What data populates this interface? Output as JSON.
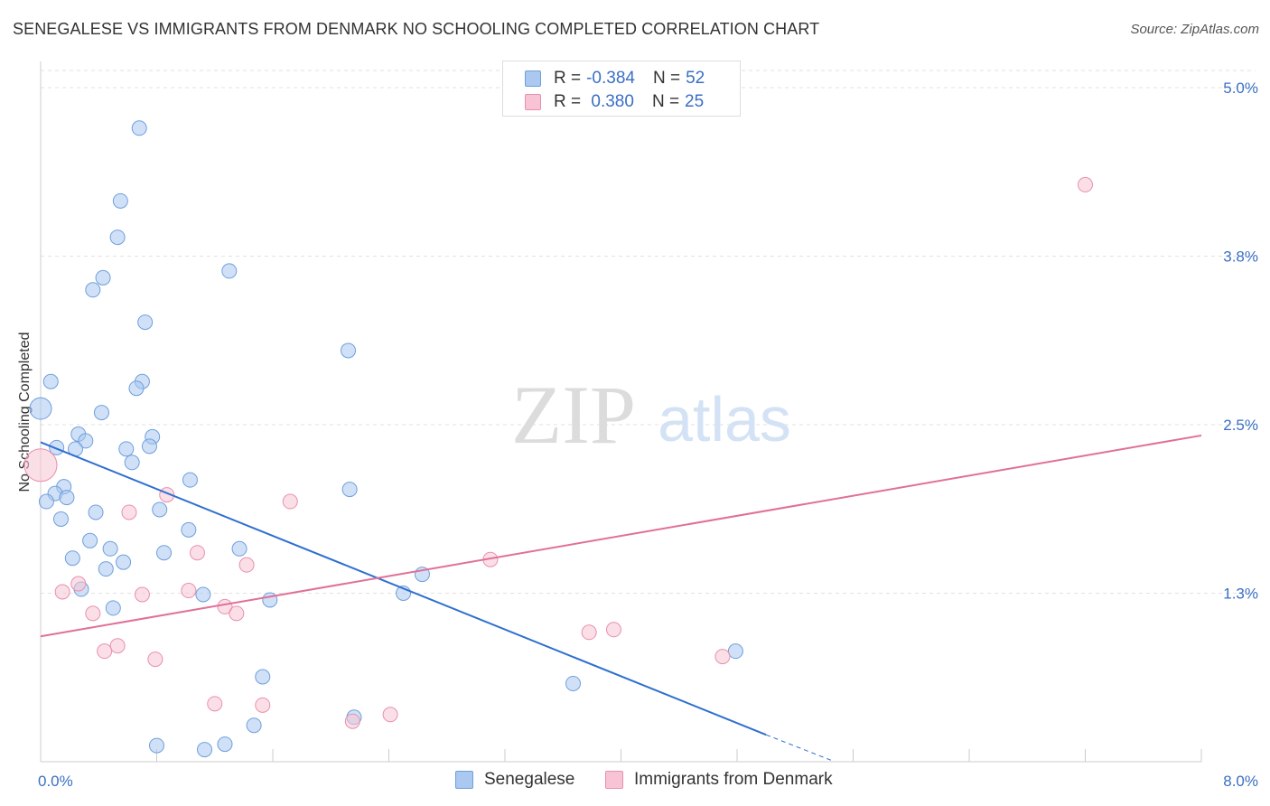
{
  "title": "SENEGALESE VS IMMIGRANTS FROM DENMARK NO SCHOOLING COMPLETED CORRELATION CHART",
  "source": "Source: ZipAtlas.com",
  "watermark": {
    "zip": "ZIP",
    "atlas": "atlas"
  },
  "legend": {
    "rows": [
      {
        "r_label": "R = ",
        "r_value": "-0.384",
        "n_label": "N = ",
        "n_value": "52",
        "color": "#aac8f0",
        "border": "#6e9fdc"
      },
      {
        "r_label": "R = ",
        "r_value": " 0.380",
        "n_label": "N = ",
        "n_value": "25",
        "color": "#f8c4d4",
        "border": "#e98fae"
      }
    ]
  },
  "bottom_legend": [
    {
      "label": "Senegalese",
      "color": "#aac8f0",
      "border": "#6e9fdc"
    },
    {
      "label": "Immigrants from Denmark",
      "color": "#f8c4d4",
      "border": "#e98fae"
    }
  ],
  "chart_data": {
    "type": "scatter",
    "title": "SENEGALESE VS IMMIGRANTS FROM DENMARK NO SCHOOLING COMPLETED CORRELATION CHART",
    "xlabel": "",
    "ylabel": "No Schooling Completed",
    "xlim": [
      0,
      8.0
    ],
    "ylim": [
      0,
      5.0
    ],
    "x_tick_labels": [
      {
        "value": 0,
        "label": "0.0%"
      },
      {
        "value": 8.0,
        "label": "8.0%"
      }
    ],
    "y_tick_labels": [
      {
        "value": 1.25,
        "label": "1.3%"
      },
      {
        "value": 2.5,
        "label": "2.5%"
      },
      {
        "value": 3.75,
        "label": "3.8%"
      },
      {
        "value": 5.0,
        "label": "5.0%"
      }
    ],
    "grid": true,
    "series": [
      {
        "name": "Senegalese",
        "color": "#6e9fdc",
        "fill": "#aac8f0",
        "trend": {
          "x": [
            0.0,
            5.0
          ],
          "y": [
            2.37,
            0.2
          ]
        },
        "trend_dashed": {
          "x": [
            5.0,
            5.45
          ],
          "y": [
            0.2,
            0.01
          ]
        },
        "points": [
          [
            0.68,
            4.7
          ],
          [
            0.55,
            4.16
          ],
          [
            0.53,
            3.89
          ],
          [
            0.43,
            3.59
          ],
          [
            0.36,
            3.5
          ],
          [
            0.72,
            3.26
          ],
          [
            1.3,
            3.64
          ],
          [
            2.12,
            3.05
          ],
          [
            0.07,
            2.82
          ],
          [
            0.7,
            2.82
          ],
          [
            0.66,
            2.77
          ],
          [
            0.0,
            2.62
          ],
          [
            0.42,
            2.59
          ],
          [
            0.26,
            2.43
          ],
          [
            0.31,
            2.38
          ],
          [
            0.77,
            2.41
          ],
          [
            0.75,
            2.34
          ],
          [
            0.11,
            2.33
          ],
          [
            0.24,
            2.32
          ],
          [
            0.59,
            2.32
          ],
          [
            0.63,
            2.22
          ],
          [
            0.16,
            2.04
          ],
          [
            1.03,
            2.09
          ],
          [
            2.13,
            2.02
          ],
          [
            0.1,
            1.99
          ],
          [
            0.18,
            1.96
          ],
          [
            0.04,
            1.93
          ],
          [
            0.82,
            1.87
          ],
          [
            0.38,
            1.85
          ],
          [
            0.14,
            1.8
          ],
          [
            1.02,
            1.72
          ],
          [
            0.34,
            1.64
          ],
          [
            0.48,
            1.58
          ],
          [
            1.37,
            1.58
          ],
          [
            0.85,
            1.55
          ],
          [
            0.22,
            1.51
          ],
          [
            0.57,
            1.48
          ],
          [
            0.45,
            1.43
          ],
          [
            2.63,
            1.39
          ],
          [
            0.28,
            1.28
          ],
          [
            2.5,
            1.25
          ],
          [
            1.12,
            1.24
          ],
          [
            1.58,
            1.2
          ],
          [
            0.5,
            1.14
          ],
          [
            4.79,
            0.82
          ],
          [
            1.53,
            0.63
          ],
          [
            3.67,
            0.58
          ],
          [
            2.16,
            0.33
          ],
          [
            1.47,
            0.27
          ],
          [
            0.8,
            0.12
          ],
          [
            1.27,
            0.13
          ],
          [
            1.13,
            0.09
          ]
        ],
        "big_point": [
          0.0,
          2.62
        ]
      },
      {
        "name": "Immigrants from Denmark",
        "color": "#e98fae",
        "fill": "#f8c4d4",
        "trend": {
          "x": [
            0.0,
            8.0
          ],
          "y": [
            0.93,
            2.42
          ]
        },
        "points": [
          [
            0.0,
            2.2
          ],
          [
            7.2,
            4.28
          ],
          [
            1.72,
            1.93
          ],
          [
            0.87,
            1.98
          ],
          [
            0.61,
            1.85
          ],
          [
            1.08,
            1.55
          ],
          [
            1.42,
            1.46
          ],
          [
            3.1,
            1.5
          ],
          [
            0.26,
            1.32
          ],
          [
            0.15,
            1.26
          ],
          [
            1.02,
            1.27
          ],
          [
            0.7,
            1.24
          ],
          [
            1.27,
            1.15
          ],
          [
            1.35,
            1.1
          ],
          [
            0.36,
            1.1
          ],
          [
            3.95,
            0.98
          ],
          [
            3.78,
            0.96
          ],
          [
            0.53,
            0.86
          ],
          [
            0.44,
            0.82
          ],
          [
            4.7,
            0.78
          ],
          [
            0.79,
            0.76
          ],
          [
            1.2,
            0.43
          ],
          [
            1.53,
            0.42
          ],
          [
            2.41,
            0.35
          ],
          [
            2.15,
            0.3
          ]
        ],
        "big_point": [
          0.0,
          2.2
        ]
      }
    ]
  }
}
